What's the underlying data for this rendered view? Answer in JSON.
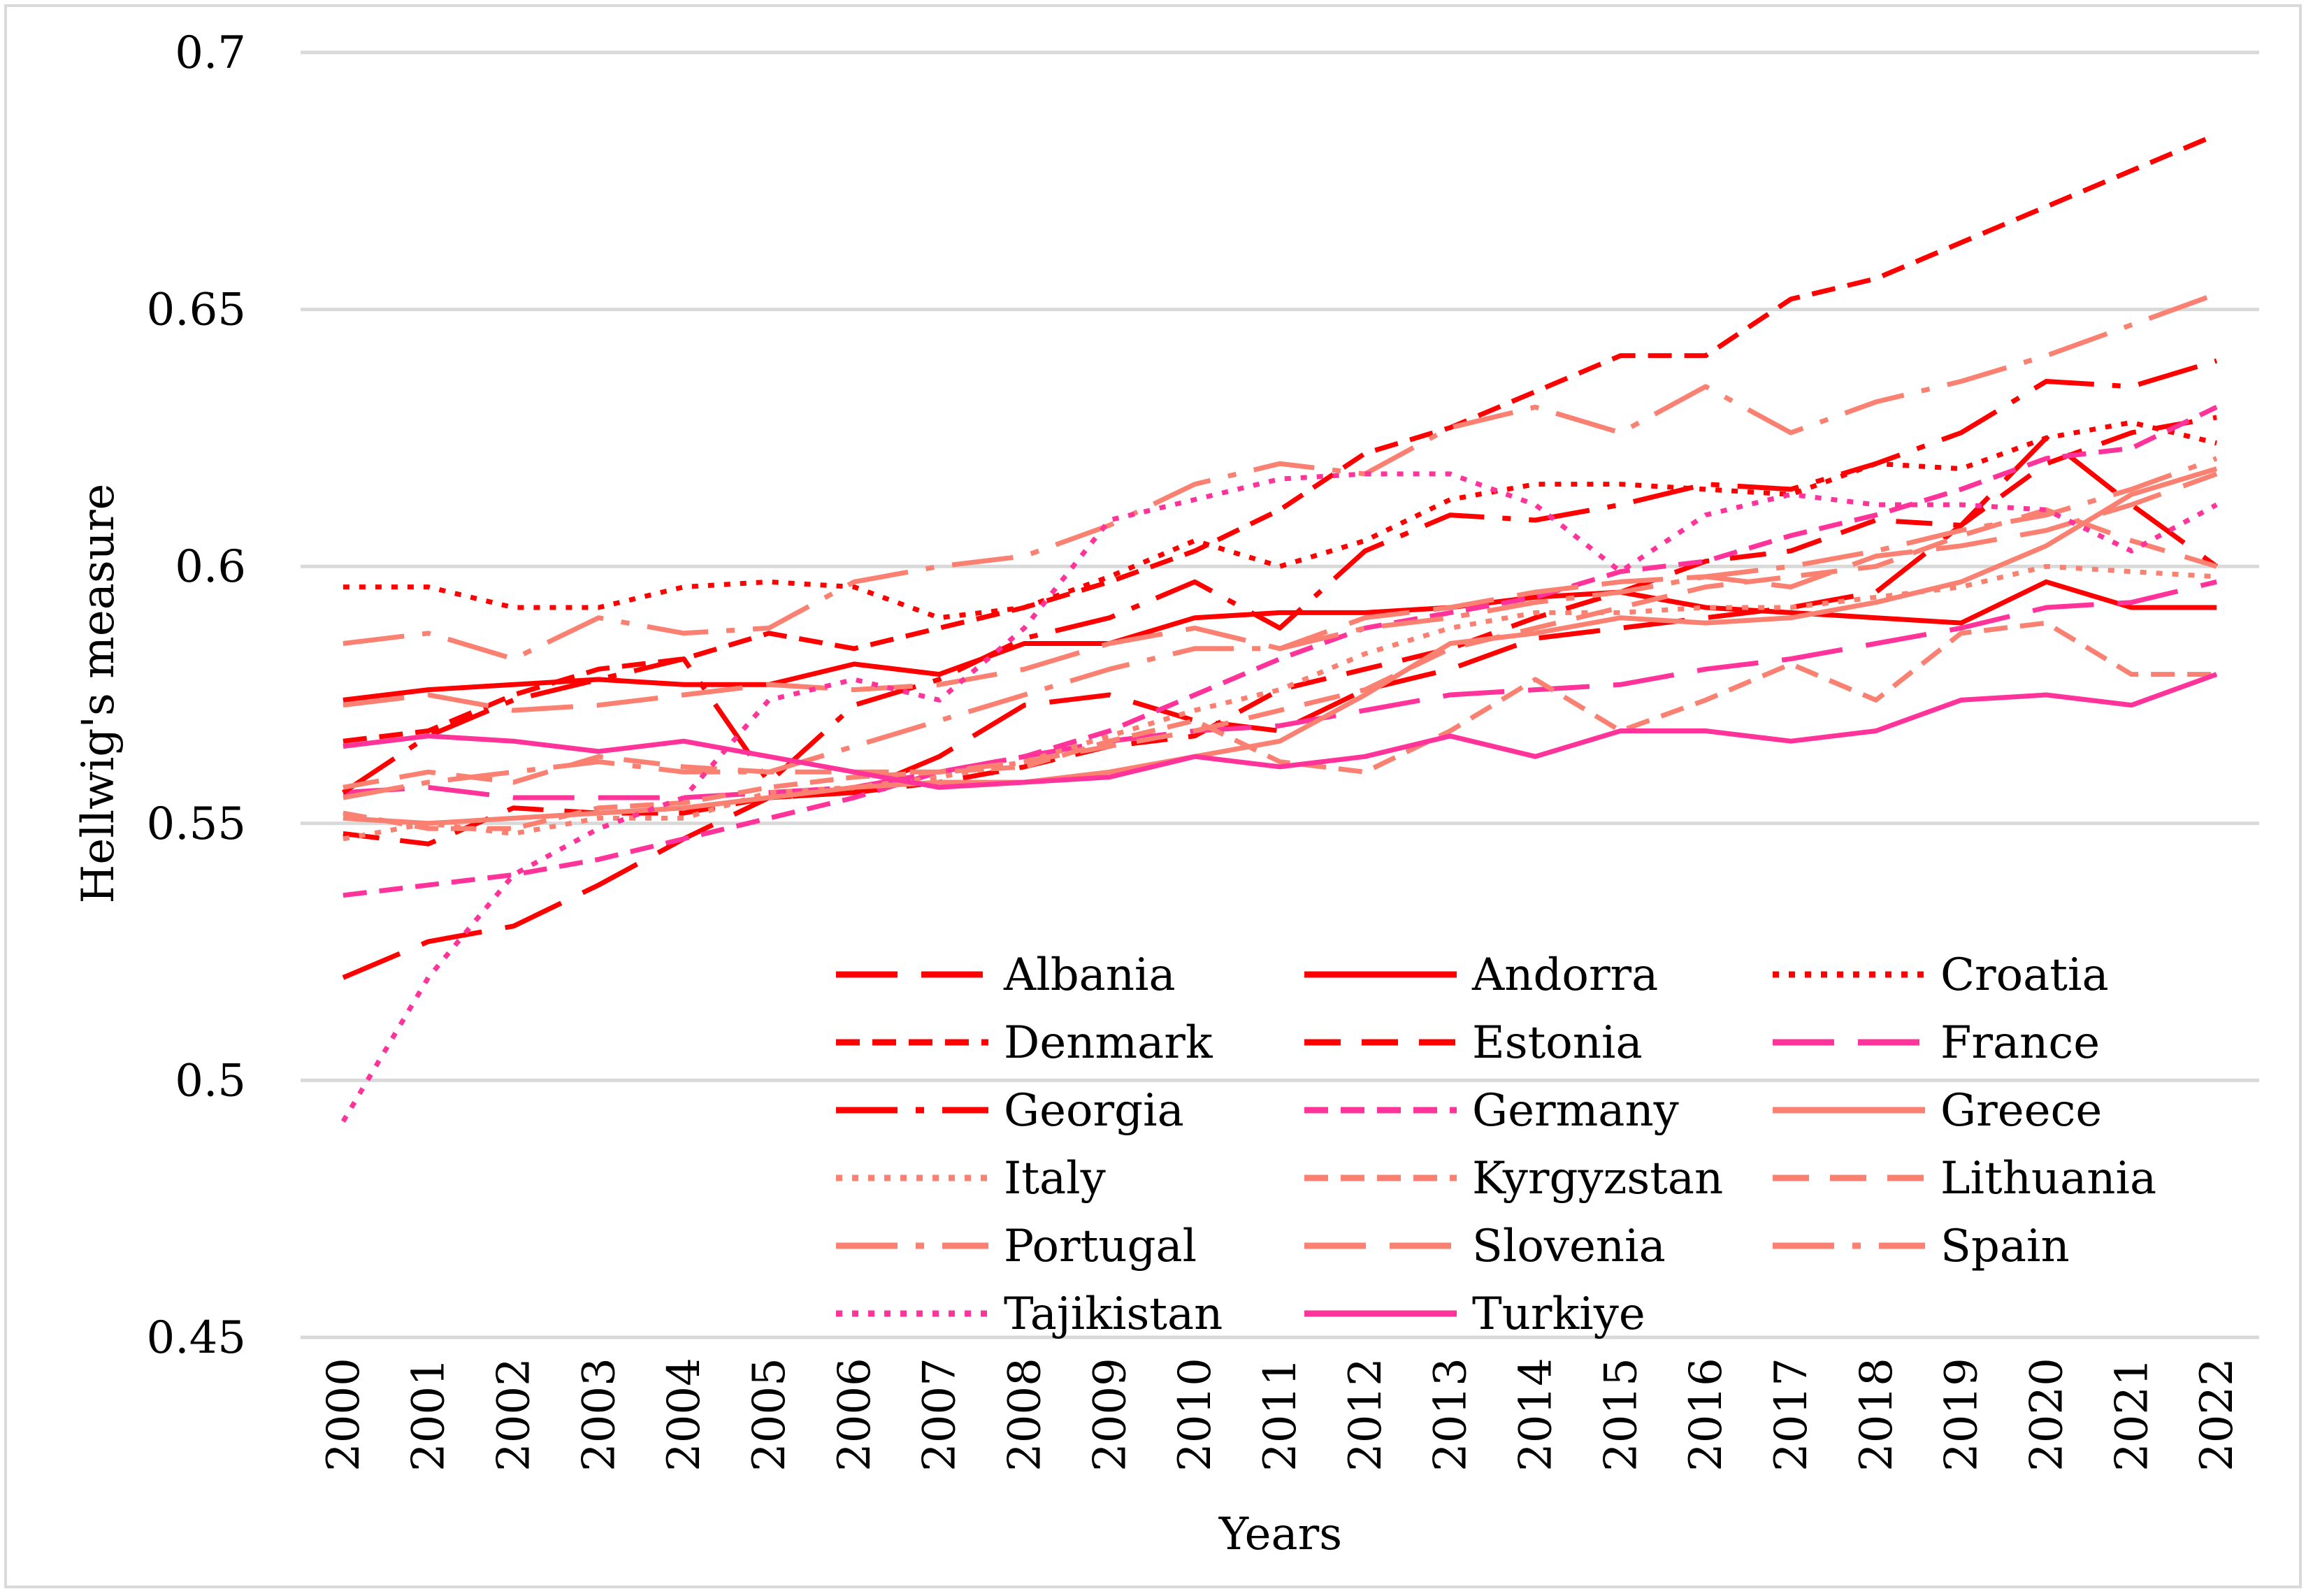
{
  "chart_data": {
    "type": "line",
    "title": "",
    "xlabel": "Years",
    "ylabel": "Hellwig's measure",
    "ylim": [
      0.45,
      0.7
    ],
    "yticks": [
      "0.45",
      "0.5",
      "0.55",
      "0.6",
      "0.65",
      "0.7"
    ],
    "grid": "horizontal",
    "legend_position": "bottom-right",
    "categories": [
      "2000",
      "2001",
      "2002",
      "2003",
      "2004",
      "2005",
      "2006",
      "2007",
      "2008",
      "2009",
      "2010",
      "2011",
      "2012",
      "2013",
      "2014",
      "2015",
      "2016",
      "2017",
      "2018",
      "2019",
      "2020",
      "2021",
      "2022"
    ],
    "series": [
      {
        "name": "Albania",
        "color": "#FF0000",
        "dash": "long-dash",
        "values": [
          0.52,
          0.527,
          0.53,
          0.538,
          0.547,
          0.555,
          0.556,
          0.563,
          0.573,
          0.575,
          0.57,
          0.568,
          0.576,
          0.58,
          0.586,
          0.588,
          0.59,
          0.592,
          0.595,
          0.608,
          0.625,
          0.612,
          0.6
        ]
      },
      {
        "name": "Andorra",
        "color": "#FF0000",
        "dash": "solid",
        "values": [
          0.574,
          0.576,
          0.577,
          0.578,
          0.577,
          0.577,
          0.581,
          0.579,
          0.585,
          0.585,
          0.59,
          0.591,
          0.591,
          0.592,
          0.594,
          0.595,
          0.592,
          0.591,
          0.59,
          0.589,
          0.597,
          0.592,
          0.592
        ]
      },
      {
        "name": "Croatia",
        "color": "#FF0000",
        "dash": "dot",
        "values": [
          0.596,
          0.596,
          0.592,
          0.592,
          0.596,
          0.597,
          0.596,
          0.59,
          0.592,
          0.598,
          0.605,
          0.6,
          0.605,
          0.613,
          0.616,
          0.616,
          0.615,
          0.614,
          0.62,
          0.619,
          0.625,
          0.628,
          0.624
        ]
      },
      {
        "name": "Denmark",
        "color": "#FF0000",
        "dash": "dash",
        "values": [
          0.566,
          0.568,
          0.575,
          0.58,
          0.582,
          0.587,
          0.584,
          0.588,
          0.592,
          0.597,
          0.603,
          0.611,
          0.622,
          0.627,
          0.634,
          0.641,
          0.641,
          0.652,
          0.656,
          0.663,
          0.67,
          0.677,
          0.684
        ]
      },
      {
        "name": "Estonia",
        "color": "#FF0000",
        "dash": "medium-dash",
        "values": [
          0.548,
          0.546,
          0.553,
          0.552,
          0.552,
          0.555,
          0.556,
          0.558,
          0.561,
          0.565,
          0.567,
          0.576,
          0.58,
          0.584,
          0.59,
          0.595,
          0.601,
          0.603,
          0.609,
          0.608,
          0.62,
          0.626,
          0.629
        ]
      },
      {
        "name": "France",
        "color": "#FF3399",
        "dash": "long-dash",
        "values": [
          0.556,
          0.557,
          0.555,
          0.555,
          0.555,
          0.556,
          0.557,
          0.56,
          0.563,
          0.566,
          0.568,
          0.569,
          0.572,
          0.575,
          0.576,
          0.577,
          0.58,
          0.582,
          0.585,
          0.588,
          0.592,
          0.593,
          0.597
        ]
      },
      {
        "name": "Georgia",
        "color": "#FF0000",
        "dash": "dash-dot",
        "values": [
          0.556,
          0.567,
          0.574,
          0.578,
          0.582,
          0.558,
          0.573,
          0.578,
          0.586,
          0.59,
          0.597,
          0.588,
          0.603,
          0.61,
          0.609,
          0.612,
          0.616,
          0.615,
          0.62,
          0.626,
          0.636,
          0.635,
          0.64
        ]
      },
      {
        "name": "Germany",
        "color": "#FF3399",
        "dash": "dash",
        "values": [
          0.536,
          0.538,
          0.54,
          0.543,
          0.547,
          0.551,
          0.555,
          0.56,
          0.563,
          0.568,
          0.575,
          0.582,
          0.588,
          0.591,
          0.594,
          0.599,
          0.601,
          0.606,
          0.61,
          0.615,
          0.621,
          0.623,
          0.631
        ]
      },
      {
        "name": "Greece",
        "color": "#FA8072",
        "dash": "solid",
        "values": [
          0.551,
          0.55,
          0.551,
          0.552,
          0.553,
          0.555,
          0.557,
          0.558,
          0.558,
          0.56,
          0.563,
          0.566,
          0.575,
          0.585,
          0.587,
          0.59,
          0.589,
          0.59,
          0.593,
          0.597,
          0.604,
          0.614,
          0.619
        ]
      },
      {
        "name": "Italy",
        "color": "#FA8072",
        "dash": "dot",
        "values": [
          0.547,
          0.55,
          0.548,
          0.551,
          0.551,
          0.556,
          0.557,
          0.559,
          0.562,
          0.567,
          0.572,
          0.576,
          0.583,
          0.588,
          0.591,
          0.591,
          0.592,
          0.592,
          0.594,
          0.596,
          0.6,
          0.599,
          0.598
        ]
      },
      {
        "name": "Kyrgyzstan",
        "color": "#FA8072",
        "dash": "dash",
        "values": [
          0.552,
          0.549,
          0.549,
          0.553,
          0.554,
          0.557,
          0.559,
          0.56,
          0.561,
          0.566,
          0.57,
          0.562,
          0.56,
          0.568,
          0.578,
          0.568,
          0.574,
          0.581,
          0.574,
          0.587,
          0.589,
          0.579,
          0.579
        ]
      },
      {
        "name": "Lithuania",
        "color": "#FA8072",
        "dash": "medium-dash",
        "values": [
          0.557,
          0.56,
          0.558,
          0.563,
          0.561,
          0.56,
          0.56,
          0.56,
          0.562,
          0.565,
          0.568,
          0.572,
          0.576,
          0.584,
          0.588,
          0.592,
          0.596,
          0.598,
          0.6,
          0.606,
          0.611,
          0.605,
          0.6
        ]
      },
      {
        "name": "Portugal",
        "color": "#FA8072",
        "dash": "dash-dot",
        "values": [
          0.585,
          0.587,
          0.582,
          0.59,
          0.587,
          0.588,
          0.597,
          0.6,
          0.602,
          0.608,
          0.616,
          0.62,
          0.618,
          0.627,
          0.631,
          0.626,
          0.635,
          0.626,
          0.632,
          0.636,
          0.641,
          0.647,
          0.653
        ]
      },
      {
        "name": "Slovenia",
        "color": "#FA8072",
        "dash": "long-dash",
        "values": [
          0.573,
          0.575,
          0.572,
          0.573,
          0.575,
          0.577,
          0.576,
          0.577,
          0.58,
          0.585,
          0.588,
          0.584,
          0.59,
          0.592,
          0.595,
          0.597,
          0.598,
          0.596,
          0.602,
          0.604,
          0.607,
          0.612,
          0.618
        ]
      },
      {
        "name": "Spain",
        "color": "#FA8072",
        "dash": "dash-dot",
        "values": [
          0.555,
          0.558,
          0.56,
          0.562,
          0.56,
          0.56,
          0.565,
          0.57,
          0.575,
          0.58,
          0.584,
          0.584,
          0.588,
          0.59,
          0.593,
          0.595,
          0.598,
          0.6,
          0.603,
          0.607,
          0.61,
          0.615,
          0.621
        ]
      },
      {
        "name": "Tajikistan",
        "color": "#FF3399",
        "dash": "dot",
        "values": [
          0.492,
          0.52,
          0.54,
          0.549,
          0.555,
          0.574,
          0.578,
          0.574,
          0.588,
          0.609,
          0.613,
          0.617,
          0.618,
          0.618,
          0.612,
          0.599,
          0.61,
          0.614,
          0.612,
          0.612,
          0.611,
          0.603,
          0.612
        ]
      },
      {
        "name": "Turkiye",
        "color": "#FF3399",
        "dash": "solid",
        "values": [
          0.565,
          0.567,
          0.566,
          0.564,
          0.566,
          0.563,
          0.56,
          0.557,
          0.558,
          0.559,
          0.563,
          0.561,
          0.563,
          0.567,
          0.563,
          0.568,
          0.568,
          0.566,
          0.568,
          0.574,
          0.575,
          0.573,
          0.579
        ]
      }
    ]
  }
}
